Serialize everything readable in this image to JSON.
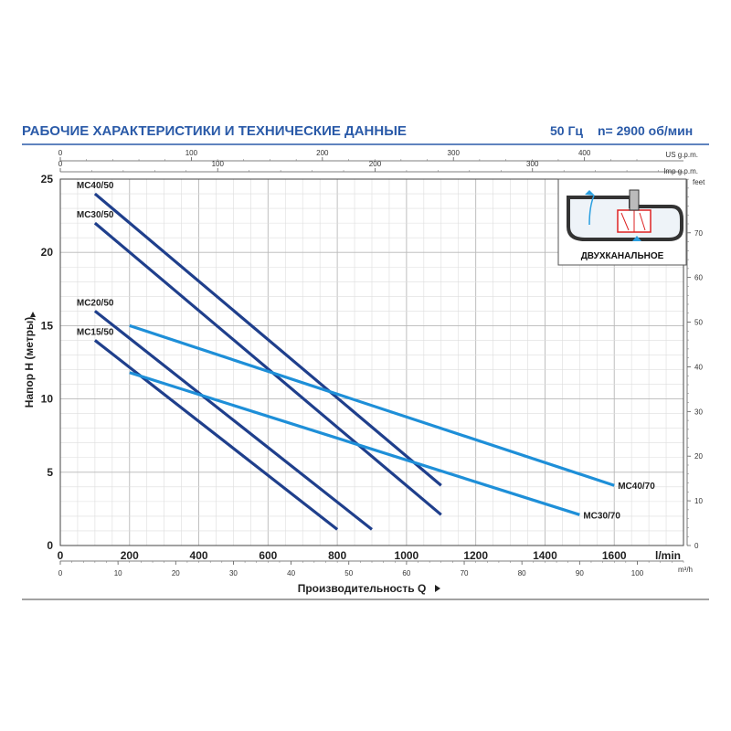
{
  "header": {
    "title": "РАБОЧИЕ ХАРАКТЕРИСТИКИ И ТЕХНИЧЕСКИЕ ДАННЫЕ",
    "frequency": "50 Гц",
    "speed": "n= 2900 об/мин"
  },
  "inset": {
    "label": "ДВУХКАНАЛЬНОЕ"
  },
  "colors": {
    "dark_series": "#1f3f8c",
    "light_series": "#1e8fd8",
    "grid": "#c8c8c8",
    "title": "#2a5aa8"
  },
  "chart_data": {
    "type": "line",
    "title": "РАБОЧИЕ ХАРАКТЕРИСТИКИ И ТЕХНИЧЕСКИЕ ДАННЫЕ",
    "xlabel": "Производительность Q",
    "ylabel": "Напор H (метры)",
    "x_unit": "l/min",
    "xlim": [
      0,
      1800
    ],
    "ylim": [
      0,
      25
    ],
    "x_ticks": [
      "0",
      "200",
      "400",
      "600",
      "800",
      "1000",
      "1200",
      "1400",
      "1600"
    ],
    "y_ticks": [
      "0",
      "5",
      "10",
      "15",
      "20",
      "25"
    ],
    "secondary_axes": {
      "us_gpm": {
        "unit": "US g.p.m.",
        "ticks": [
          "0",
          "100",
          "200",
          "300",
          "400"
        ]
      },
      "imp_gpm": {
        "unit": "Imp g.p.m.",
        "ticks": [
          "0",
          "100",
          "200",
          "300"
        ]
      },
      "m3h": {
        "unit": "m³/h",
        "ticks": [
          "0",
          "10",
          "20",
          "30",
          "40",
          "50",
          "60",
          "70",
          "80",
          "90",
          "100"
        ]
      },
      "feet": {
        "unit": "feet",
        "ticks": [
          "0",
          "10",
          "20",
          "30",
          "40",
          "50",
          "60",
          "70"
        ]
      }
    },
    "series": [
      {
        "name": "MC40/50",
        "color_key": "dark",
        "x": [
          100,
          1100
        ],
        "y": [
          24,
          4.1
        ]
      },
      {
        "name": "MC30/50",
        "color_key": "dark",
        "x": [
          100,
          1100
        ],
        "y": [
          22,
          2.1
        ]
      },
      {
        "name": "MC20/50",
        "color_key": "dark",
        "x": [
          100,
          900
        ],
        "y": [
          16,
          1.1
        ]
      },
      {
        "name": "MC15/50",
        "color_key": "dark",
        "x": [
          100,
          800
        ],
        "y": [
          14,
          1.1
        ]
      },
      {
        "name": "MC40/70",
        "color_key": "light",
        "x": [
          200,
          1600
        ],
        "y": [
          15,
          4.1
        ]
      },
      {
        "name": "MC30/70",
        "color_key": "light",
        "x": [
          200,
          1500
        ],
        "y": [
          11.8,
          2.1
        ]
      }
    ],
    "series_label_side": {
      "MC40/50": "left",
      "MC30/50": "left",
      "MC20/50": "left",
      "MC15/50": "left",
      "MC40/70": "right",
      "MC30/70": "right"
    }
  }
}
